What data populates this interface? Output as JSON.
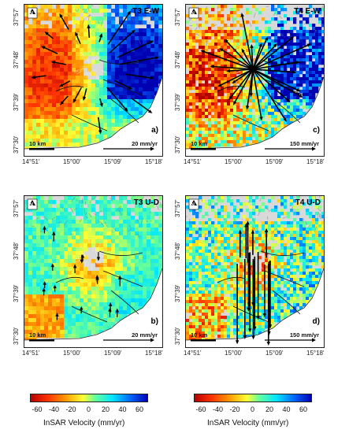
{
  "panels": [
    {
      "title": "T3 E-W",
      "letter": "a)",
      "km_label": "10 km",
      "vel_label": "20 mm/yr",
      "type": "ew",
      "velocity": "low"
    },
    {
      "title": "T4 E-W",
      "letter": "c)",
      "km_label": "10 km",
      "vel_label": "150 mm/yr",
      "type": "ew",
      "velocity": "high"
    },
    {
      "title": "T3 U-D",
      "letter": "b)",
      "km_label": "10 km",
      "vel_label": "20 mm/yr",
      "type": "ud",
      "velocity": "low"
    },
    {
      "title": "T4 U-D",
      "letter": "d)",
      "km_label": "10 km",
      "vel_label": "150 mm/yr",
      "type": "ud",
      "velocity": "high"
    }
  ],
  "x_ticks": [
    "14°51'",
    "15°00'",
    "15°09'",
    "15°18'"
  ],
  "y_ticks": [
    "37°57'",
    "37°48'",
    "37°39'",
    "37°30'"
  ],
  "north_label": "N",
  "colorbar": {
    "ticks": [
      "-60",
      "-40",
      "-20",
      "0",
      "20",
      "40",
      "60"
    ],
    "title": "InSAR Velocity (mm/yr)"
  },
  "colors": {
    "cbar": [
      "#b30000",
      "#ff3300",
      "#ff9900",
      "#ffff33",
      "#66ff99",
      "#00e6ff",
      "#0066ff",
      "#0000b3"
    ]
  }
}
